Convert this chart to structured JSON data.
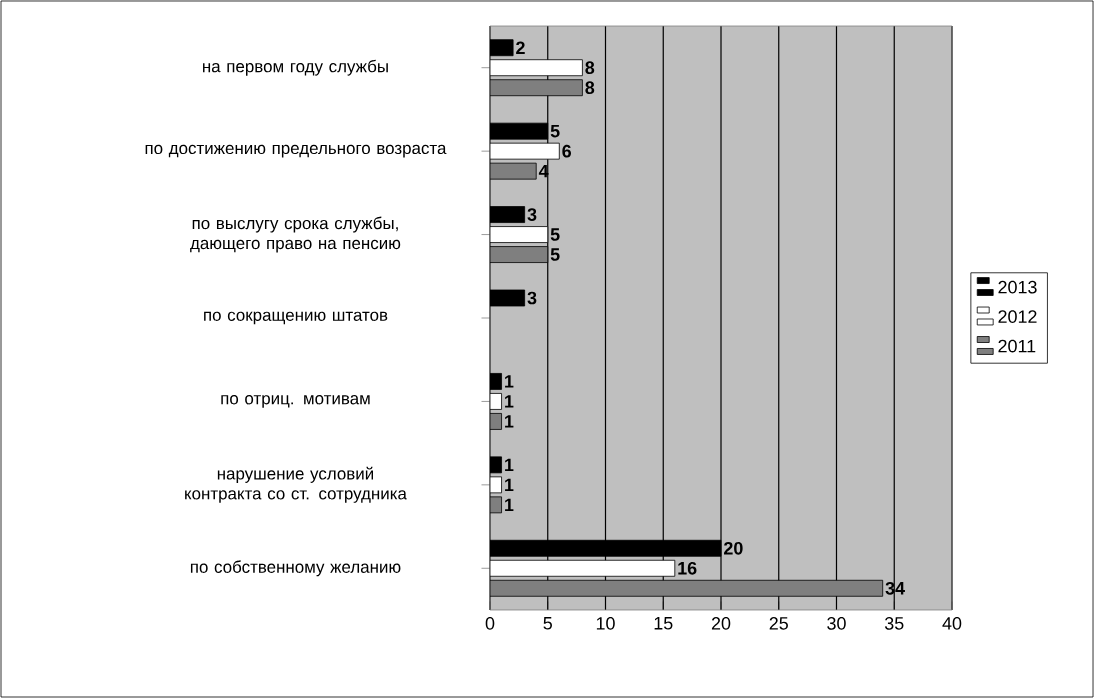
{
  "chart_data": {
    "type": "bar",
    "orientation": "horizontal",
    "categories": [
      "на первом году службы",
      "по достижению предельного возраста",
      "по выслугу срока службы, дающего право на пенсию",
      "по сокращению штатов",
      "по отриц. мотивам",
      "нарушение условий контракта со ст. сотрудника",
      "по собственному желанию"
    ],
    "series": [
      {
        "name": "2013",
        "color": "#000000",
        "values": [
          2,
          5,
          3,
          3,
          1,
          1,
          20
        ]
      },
      {
        "name": "2012",
        "color": "#ffffff",
        "values": [
          8,
          6,
          5,
          null,
          1,
          1,
          16
        ]
      },
      {
        "name": "2011",
        "color": "#7f7f7f",
        "values": [
          8,
          4,
          5,
          null,
          1,
          1,
          34
        ]
      }
    ],
    "xlim": [
      0,
      40
    ],
    "xticks": [
      0,
      5,
      10,
      15,
      20,
      25,
      30,
      35,
      40
    ],
    "grid": "x",
    "legend": "right",
    "data_labels": true
  }
}
